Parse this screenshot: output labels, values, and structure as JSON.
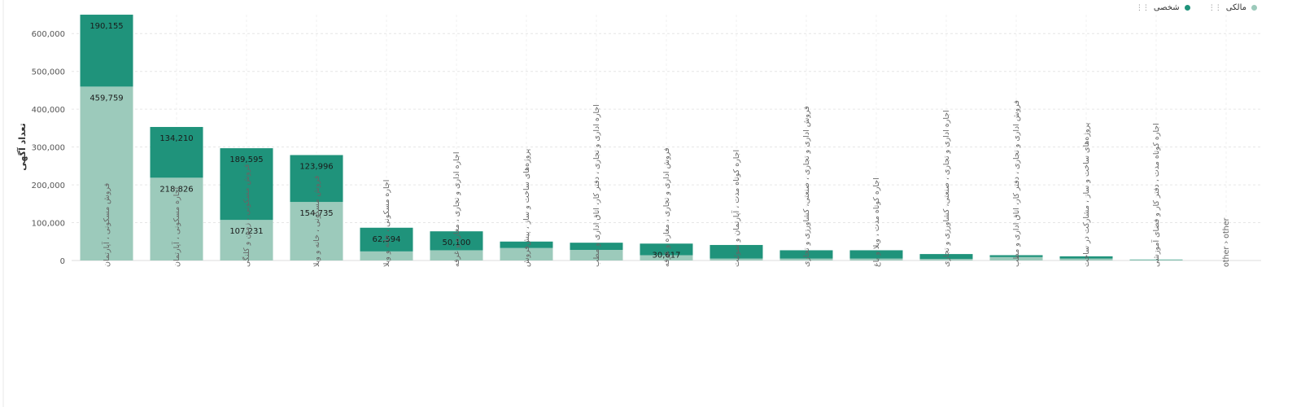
{
  "chart_data": {
    "type": "bar",
    "stacked": true,
    "ylabel": "تعداد آگهی",
    "ylim": [
      0,
      650000
    ],
    "yticks": [
      0,
      100000,
      200000,
      300000,
      400000,
      500000,
      600000
    ],
    "ytick_labels": [
      "0",
      "100,000",
      "200,000",
      "300,000",
      "400,000",
      "500,000",
      "600,000"
    ],
    "grid": true,
    "legend_position": "top-right",
    "categories": [
      "فروش مسکونی ، آپارتمان",
      "اجاره مسکونی ، آپارتمان",
      "فروش مسکونی ، زمین و کلنگی",
      "فروش مسکونی ، خانه و ویلا",
      "اجاره مسکونی ، خانه و ویلا",
      "اجاره اداری و تجاری ، مغازه و غرفه",
      "پروژه‌های ساخت و ساز ، پیش‌فروش",
      "اجاره اداری و تجاری ، دفتر کار، اتاق اداری و مطب",
      "فروش اداری و تجاری ، مغازه و غرفه",
      "اجاره کوتاه مدت ، آپارتمان و سوئیت",
      "فروش اداری و تجاری ، صنعتی، کشاورزی و تجاری",
      "اجاره کوتاه مدت ، ویلا و باغ",
      "اجاره اداری و تجاری ، صنعتی، کشاورزی و تجاری",
      "فروش اداری و تجاری ، دفتر کار، اتاق اداری و مطب",
      "پروژه‌های ساخت و ساز ، مشارکت در ساخت",
      "اجاره کوتاه مدت ، دفتر کار و فضای آموزشی",
      "other › other"
    ],
    "series": [
      {
        "name": "مالکی",
        "color": "#9ccabb",
        "values": [
          459759,
          218826,
          107231,
          154735,
          24000,
          27000,
          33000,
          28000,
          14000,
          5000,
          5000,
          5000,
          4000,
          9000,
          5000,
          1500,
          0
        ],
        "labels": [
          "459,759",
          "218,826",
          "107,231",
          "154,735",
          "",
          "",
          "",
          "",
          "",
          "",
          "",
          "",
          "",
          "",
          "",
          "",
          ""
        ]
      },
      {
        "name": "شخصی",
        "color": "#1f937b",
        "values": [
          190155,
          134210,
          189595,
          123996,
          62594,
          50100,
          17000,
          19000,
          30617,
          36000,
          22000,
          22000,
          13000,
          5000,
          6000,
          1000,
          0
        ],
        "labels": [
          "190,155",
          "134,210",
          "189,595",
          "123,996",
          "62,594",
          "50,100",
          "",
          "",
          "30,617",
          "",
          "",
          "",
          "",
          "",
          "",
          "",
          ""
        ]
      }
    ]
  }
}
